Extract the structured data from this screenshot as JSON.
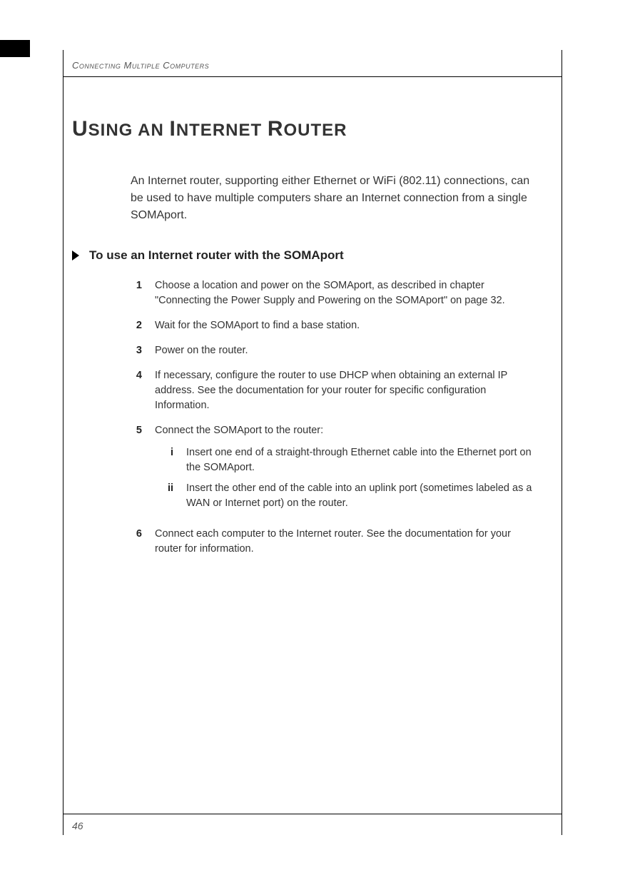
{
  "header": {
    "chapter_label": "Connecting Multiple Computers"
  },
  "title_parts": {
    "u": "U",
    "sing_an": "SING AN ",
    "i": "I",
    "nternet": "NTERNET ",
    "r": "R",
    "outer": "OUTER"
  },
  "intro": "An Internet router, supporting either Ethernet or WiFi (802.11) connections, can be used to have multiple computers share an Internet connection from a single SOMAport.",
  "subhead": "To use an Internet router with the SOMAport",
  "steps": [
    {
      "n": "1",
      "text": "Choose a location and power on the SOMAport, as described in chapter \"Connecting the Power Supply and Powering on the SOMAport\" on page 32."
    },
    {
      "n": "2",
      "text": "Wait for the SOMAport to find a base station."
    },
    {
      "n": "3",
      "text": "Power on the router."
    },
    {
      "n": "4",
      "text": "If necessary, configure the router to use DHCP when obtaining an external IP address. See the documentation for your router for specific configuration Information."
    },
    {
      "n": "5",
      "text": "Connect the SOMAport to the router:",
      "sub": [
        {
          "n": "i",
          "text": "Insert one end of a straight-through Ethernet cable into the Ethernet port on the SOMAport."
        },
        {
          "n": "ii",
          "text": "Insert the other end of the cable into an uplink port (sometimes labeled as a WAN or Internet port) on the router."
        }
      ]
    },
    {
      "n": "6",
      "text": "Connect each computer to the Internet router. See the documentation for your router for information."
    }
  ],
  "footer": {
    "page_number": "46"
  },
  "colors": {
    "text": "#2b2b2b",
    "muted": "#555555",
    "rule": "#000000",
    "background": "#ffffff"
  },
  "typography": {
    "title_size_pt": 30,
    "body_size_pt": 14.5,
    "intro_size_pt": 16,
    "subhead_size_pt": 17
  }
}
